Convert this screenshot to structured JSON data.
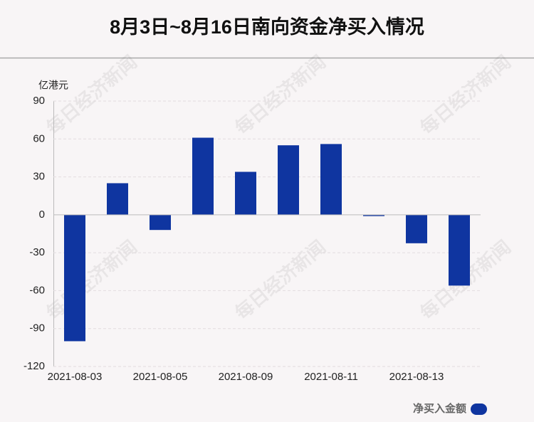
{
  "chart_data": {
    "type": "bar",
    "title": "8月3日~8月16日南向资金净买入情况",
    "y_axis_label": "亿港元",
    "watermark": "每日经济新闻",
    "categories": [
      "2021-08-03",
      null,
      "2021-08-05",
      null,
      "2021-08-09",
      null,
      "2021-08-11",
      null,
      "2021-08-13",
      null
    ],
    "series": [
      {
        "name": "净买入金额",
        "color": "#0f35a0",
        "values": [
          -100,
          25,
          -12,
          61,
          34,
          55,
          56,
          -1,
          -22.5,
          -56
        ]
      }
    ],
    "ylim": [
      -120,
      90
    ],
    "yticks": [
      -120,
      -90,
      -60,
      -30,
      0,
      30,
      60,
      90
    ],
    "grid": true,
    "legend": "bottom-right"
  }
}
